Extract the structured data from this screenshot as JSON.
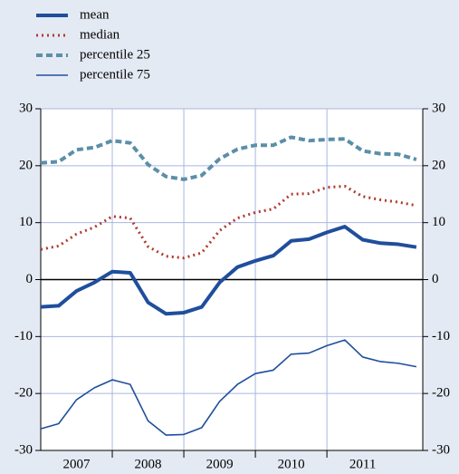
{
  "chart_data": {
    "type": "line",
    "x": [
      2007,
      2007.25,
      2007.5,
      2007.75,
      2008,
      2008.25,
      2008.5,
      2008.75,
      2009,
      2009.25,
      2009.5,
      2009.75,
      2010,
      2010.25,
      2010.5,
      2010.75,
      2011,
      2011.25,
      2011.5,
      2011.75,
      2012,
      2012.25
    ],
    "series": [
      {
        "name": "mean",
        "color": "#1f4e9c",
        "width": 4,
        "dash": "none",
        "values": [
          -4.8,
          -4.6,
          -2,
          -0.5,
          1.4,
          1.2,
          -4,
          -6,
          -5.8,
          -4.8,
          -0.5,
          2.2,
          3.3,
          4.2,
          6.8,
          7.1,
          8.3,
          9.3,
          7,
          6.4,
          6.2,
          5.7
        ]
      },
      {
        "name": "median",
        "color": "#b03a2e",
        "width": 3,
        "dash": "2 4",
        "values": [
          5.3,
          5.9,
          8.0,
          9.2,
          11.1,
          10.8,
          5.8,
          4.1,
          3.8,
          4.7,
          8.6,
          10.8,
          11.8,
          12.4,
          15.0,
          15.1,
          16.2,
          16.4,
          14.6,
          14.0,
          13.6,
          13.0
        ]
      },
      {
        "name": "percentile 25",
        "color": "#5b8fa8",
        "width": 4,
        "dash": "7 4",
        "values": [
          20.5,
          20.7,
          22.8,
          23.2,
          24.4,
          24.0,
          20.2,
          18.1,
          17.6,
          18.3,
          21.2,
          22.9,
          23.6,
          23.6,
          25.0,
          24.4,
          24.6,
          24.7,
          22.6,
          22.1,
          22.0,
          21.1
        ]
      },
      {
        "name": "percentile 75",
        "color": "#1f4e9c",
        "width": 1.6,
        "dash": "none",
        "values": [
          -26.2,
          -25.3,
          -21.1,
          -19.0,
          -17.6,
          -18.4,
          -24.8,
          -27.3,
          -27.2,
          -26.0,
          -21.4,
          -18.4,
          -16.5,
          -15.9,
          -13.1,
          -12.9,
          -11.6,
          -10.6,
          -13.6,
          -14.4,
          -14.7,
          -15.3
        ]
      }
    ],
    "xlim": [
      2007,
      2012.34
    ],
    "xticks": [
      {
        "value": 2007.5,
        "label": "2007"
      },
      {
        "value": 2008.5,
        "label": "2008"
      },
      {
        "value": 2009.5,
        "label": "2009"
      },
      {
        "value": 2010.5,
        "label": "2010"
      },
      {
        "value": 2011.5,
        "label": "2011"
      }
    ],
    "xgrid": [
      2008,
      2009,
      2010,
      2011
    ],
    "ylim": [
      -30,
      30
    ],
    "yticks": [
      -30,
      -20,
      -10,
      0,
      10,
      20,
      30
    ],
    "y2lim": [
      -30,
      30
    ],
    "y2ticks": [
      -30,
      -20,
      -10,
      0,
      10,
      20,
      30
    ],
    "grid": true
  }
}
